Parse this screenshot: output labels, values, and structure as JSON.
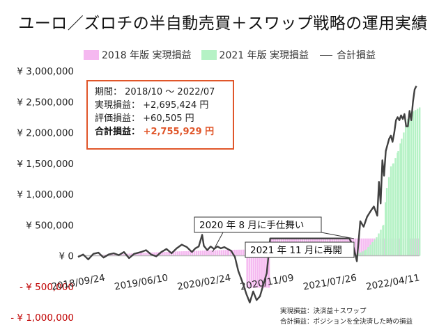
{
  "title": "ユーロ／ズロチの半自動売買＋スワップ戦略の運用実績",
  "legend": {
    "s2018": "2018 年版 実現損益",
    "s2021": "2021 年版 実現損益",
    "total": "合計損益"
  },
  "colors": {
    "s2018": "#f5b8f0",
    "s2021": "#b5f2c5",
    "total": "#404040",
    "accent": "#e0562a",
    "negative": "#c00000"
  },
  "infobox": {
    "period_label": "期間：",
    "period_value": "2018/10 ～ 2022/07",
    "realized_label": "実現損益：",
    "realized_value": "+2,695,424 円",
    "unrealized_label": "評価損益：",
    "unrealized_value": "+60,505 円",
    "total_label": "合計損益：",
    "total_value": "+2,755,929 円"
  },
  "callouts": {
    "stop": "2020 年 8 月に手仕舞い",
    "restart": "2021 年 11 月に再開"
  },
  "notes": {
    "line1": "実現損益：決済益＋スワップ",
    "line2": "合計損益：ポジションを全決済した時の損益"
  },
  "chart_data": {
    "type": "line",
    "title": "ユーロ／ズロチの半自動売買＋スワップ戦略の運用実績",
    "xlabel": "",
    "ylabel": "",
    "ylim": [
      -1000000,
      3000000
    ],
    "yticks": [
      {
        "value": 3000000,
        "label": "¥ 3,000,000"
      },
      {
        "value": 2500000,
        "label": "¥ 2,500,000"
      },
      {
        "value": 2000000,
        "label": "¥ 2,000,000"
      },
      {
        "value": 1500000,
        "label": "¥ 1,500,000"
      },
      {
        "value": 1000000,
        "label": "¥ 1,000,000"
      },
      {
        "value": 500000,
        "label": "¥ 500,000"
      },
      {
        "value": 0,
        "label": "¥ 0"
      },
      {
        "value": -500000,
        "label": "- ¥ 500,000"
      },
      {
        "value": -1000000,
        "label": "- ¥ 1,000,000"
      }
    ],
    "xrange": [
      "2018-09-24",
      "2022-07-31"
    ],
    "xticks": [
      "2018/09/24",
      "2019/06/10",
      "2020/02/24",
      "2020/11/09",
      "2021/07/26",
      "2022/04/11"
    ],
    "grid": false,
    "legend_position": "top",
    "series": [
      {
        "name": "2018 年版 実現損益",
        "kind": "area",
        "points": [
          [
            "2018-09-24",
            0
          ],
          [
            "2018-12-01",
            10000
          ],
          [
            "2019-03-01",
            25000
          ],
          [
            "2019-06-10",
            45000
          ],
          [
            "2019-10-01",
            65000
          ],
          [
            "2020-02-24",
            85000
          ],
          [
            "2020-06-01",
            95000
          ],
          [
            "2020-08-10",
            100000
          ],
          [
            "2020-08-17",
            -520000
          ],
          [
            "2020-11-15",
            -520000
          ],
          [
            "2020-11-23",
            280000
          ],
          [
            "2021-07-26",
            280000
          ],
          [
            "2022-07-31",
            280000
          ]
        ]
      },
      {
        "name": "2021 年版 実現損益",
        "kind": "area",
        "points": [
          [
            "2021-11-01",
            0
          ],
          [
            "2021-12-20",
            100000
          ],
          [
            "2022-02-01",
            300000
          ],
          [
            "2022-03-01",
            500000
          ],
          [
            "2022-03-15",
            1100000
          ],
          [
            "2022-04-01",
            1450000
          ],
          [
            "2022-04-11",
            1500000
          ],
          [
            "2022-05-01",
            1700000
          ],
          [
            "2022-05-15",
            1900000
          ],
          [
            "2022-06-01",
            2100000
          ],
          [
            "2022-06-15",
            2300000
          ],
          [
            "2022-07-31",
            2415424
          ]
        ]
      },
      {
        "name": "合計損益",
        "kind": "line",
        "points": [
          [
            "2018-09-24",
            -20000
          ],
          [
            "2018-10-15",
            20000
          ],
          [
            "2018-11-05",
            -60000
          ],
          [
            "2018-11-26",
            30000
          ],
          [
            "2018-12-17",
            50000
          ],
          [
            "2019-01-07",
            -30000
          ],
          [
            "2019-01-28",
            20000
          ],
          [
            "2019-02-18",
            40000
          ],
          [
            "2019-03-11",
            10000
          ],
          [
            "2019-04-01",
            60000
          ],
          [
            "2019-04-22",
            -40000
          ],
          [
            "2019-05-13",
            30000
          ],
          [
            "2019-06-10",
            60000
          ],
          [
            "2019-07-01",
            90000
          ],
          [
            "2019-07-22",
            20000
          ],
          [
            "2019-08-12",
            -10000
          ],
          [
            "2019-09-02",
            60000
          ],
          [
            "2019-09-23",
            110000
          ],
          [
            "2019-10-14",
            40000
          ],
          [
            "2019-11-04",
            120000
          ],
          [
            "2019-11-25",
            180000
          ],
          [
            "2019-12-16",
            140000
          ],
          [
            "2020-01-06",
            60000
          ],
          [
            "2020-01-20",
            120000
          ],
          [
            "2020-02-03",
            150000
          ],
          [
            "2020-02-17",
            340000
          ],
          [
            "2020-02-24",
            160000
          ],
          [
            "2020-03-09",
            90000
          ],
          [
            "2020-03-23",
            150000
          ],
          [
            "2020-04-06",
            110000
          ],
          [
            "2020-04-20",
            150000
          ],
          [
            "2020-05-04",
            120000
          ],
          [
            "2020-05-18",
            140000
          ],
          [
            "2020-06-01",
            110000
          ],
          [
            "2020-06-15",
            80000
          ],
          [
            "2020-07-01",
            -20000
          ],
          [
            "2020-07-15",
            -250000
          ],
          [
            "2020-08-03",
            -450000
          ],
          [
            "2020-08-17",
            -620000
          ],
          [
            "2020-08-31",
            -760000
          ],
          [
            "2020-09-14",
            -580000
          ],
          [
            "2020-09-28",
            -720000
          ],
          [
            "2020-10-12",
            -660000
          ],
          [
            "2020-10-26",
            -470000
          ],
          [
            "2020-11-09",
            -280000
          ],
          [
            "2020-11-23",
            280000
          ],
          [
            "2021-03-01",
            280000
          ],
          [
            "2021-07-26",
            280000
          ],
          [
            "2021-10-15",
            280000
          ],
          [
            "2021-11-01",
            150000
          ],
          [
            "2021-11-15",
            -90000
          ],
          [
            "2021-11-29",
            560000
          ],
          [
            "2021-12-13",
            470000
          ],
          [
            "2021-12-27",
            630000
          ],
          [
            "2022-01-10",
            720000
          ],
          [
            "2022-01-24",
            800000
          ],
          [
            "2022-02-07",
            650000
          ],
          [
            "2022-02-14",
            1200000
          ],
          [
            "2022-02-21",
            850000
          ],
          [
            "2022-02-28",
            1550000
          ],
          [
            "2022-03-07",
            1300000
          ],
          [
            "2022-03-14",
            1700000
          ],
          [
            "2022-03-21",
            1800000
          ],
          [
            "2022-03-28",
            1900000
          ],
          [
            "2022-04-04",
            1950000
          ],
          [
            "2022-04-11",
            1850000
          ],
          [
            "2022-04-18",
            2000000
          ],
          [
            "2022-04-25",
            2200000
          ],
          [
            "2022-05-02",
            2250000
          ],
          [
            "2022-05-09",
            2200000
          ],
          [
            "2022-05-16",
            2280000
          ],
          [
            "2022-05-23",
            2220000
          ],
          [
            "2022-05-30",
            2300000
          ],
          [
            "2022-06-06",
            2100000
          ],
          [
            "2022-06-13",
            2100000
          ],
          [
            "2022-06-20",
            2350000
          ],
          [
            "2022-06-27",
            2200000
          ],
          [
            "2022-07-04",
            2500000
          ],
          [
            "2022-07-11",
            2700000
          ],
          [
            "2022-07-18",
            2755929
          ]
        ]
      }
    ]
  }
}
